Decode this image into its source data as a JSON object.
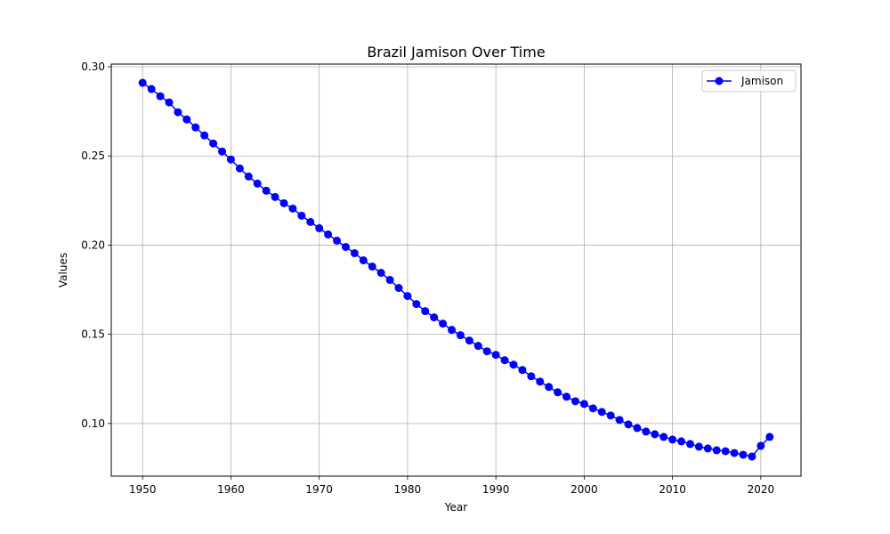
{
  "chart_data": {
    "type": "line",
    "title": "Brazil Jamison Over Time",
    "xlabel": "Year",
    "ylabel": "Values",
    "xlim": [
      1946.45,
      2024.55
    ],
    "ylim": [
      0.0705,
      0.3015
    ],
    "xticks": [
      1950,
      1960,
      1970,
      1980,
      1990,
      2000,
      2010,
      2020
    ],
    "yticks": [
      0.1,
      0.15,
      0.2,
      0.25,
      0.3
    ],
    "ytick_labels": [
      "0.10",
      "0.15",
      "0.20",
      "0.25",
      "0.30"
    ],
    "grid": true,
    "legend_position": "top-right",
    "x": [
      1950,
      1951,
      1952,
      1953,
      1954,
      1955,
      1956,
      1957,
      1958,
      1959,
      1960,
      1961,
      1962,
      1963,
      1964,
      1965,
      1966,
      1967,
      1968,
      1969,
      1970,
      1971,
      1972,
      1973,
      1974,
      1975,
      1976,
      1977,
      1978,
      1979,
      1980,
      1981,
      1982,
      1983,
      1984,
      1985,
      1986,
      1987,
      1988,
      1989,
      1990,
      1991,
      1992,
      1993,
      1994,
      1995,
      1996,
      1997,
      1998,
      1999,
      2000,
      2001,
      2002,
      2003,
      2004,
      2005,
      2006,
      2007,
      2008,
      2009,
      2010,
      2011,
      2012,
      2013,
      2014,
      2015,
      2016,
      2017,
      2018,
      2019,
      2020,
      2021
    ],
    "series": [
      {
        "name": "Jamison",
        "color": "#0000ff",
        "marker": "circle",
        "values": [
          0.291,
          0.2875,
          0.2835,
          0.28,
          0.2745,
          0.2705,
          0.266,
          0.2615,
          0.257,
          0.2525,
          0.248,
          0.243,
          0.2385,
          0.2345,
          0.2305,
          0.227,
          0.2235,
          0.2205,
          0.2165,
          0.213,
          0.2095,
          0.206,
          0.2025,
          0.199,
          0.1955,
          0.1915,
          0.188,
          0.1845,
          0.1805,
          0.176,
          0.1715,
          0.167,
          0.163,
          0.1595,
          0.156,
          0.1525,
          0.1495,
          0.1465,
          0.1435,
          0.1405,
          0.1385,
          0.1355,
          0.133,
          0.13,
          0.1265,
          0.1235,
          0.1205,
          0.1175,
          0.115,
          0.1125,
          0.111,
          0.1085,
          0.1065,
          0.1045,
          0.102,
          0.0995,
          0.0975,
          0.0955,
          0.094,
          0.0925,
          0.091,
          0.09,
          0.0885,
          0.087,
          0.086,
          0.085,
          0.0845,
          0.0835,
          0.0825,
          0.0815,
          0.0875,
          0.0925
        ]
      }
    ]
  }
}
